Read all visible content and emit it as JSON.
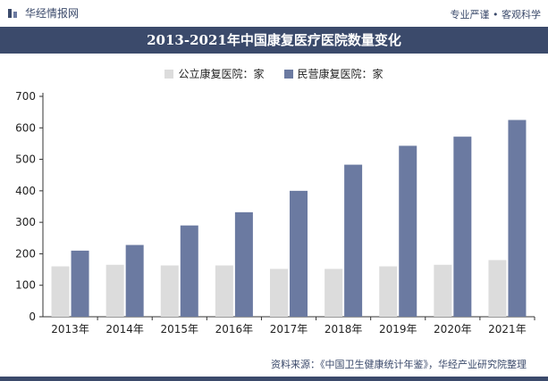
{
  "header": {
    "brand": "华经情报网",
    "slogan": "专业严谨 • 客观科学"
  },
  "source": "资料来源：《中国卫生健康统计年鉴》，华经产业研究院整理",
  "colors": {
    "header": "#3b4a6b",
    "public": "#dcdcdc",
    "private": "#6b7aa1"
  },
  "chart_data": {
    "type": "bar",
    "title": "2013-2021年中国康复医疗医院数量变化",
    "xlabel": "",
    "ylabel": "",
    "categories": [
      "2013年",
      "2014年",
      "2015年",
      "2016年",
      "2017年",
      "2018年",
      "2019年",
      "2020年",
      "2021年"
    ],
    "series": [
      {
        "name": "公立康复医院：家",
        "values": [
          160,
          165,
          163,
          163,
          152,
          152,
          160,
          165,
          180
        ]
      },
      {
        "name": "民营康复医院：家",
        "values": [
          210,
          228,
          290,
          332,
          400,
          483,
          543,
          572,
          625
        ]
      }
    ],
    "ylim": [
      0,
      700
    ],
    "yticks": [
      "0",
      "100",
      "200",
      "300",
      "400",
      "500",
      "600",
      "700"
    ],
    "legend_position": "top-center",
    "grid": false
  }
}
